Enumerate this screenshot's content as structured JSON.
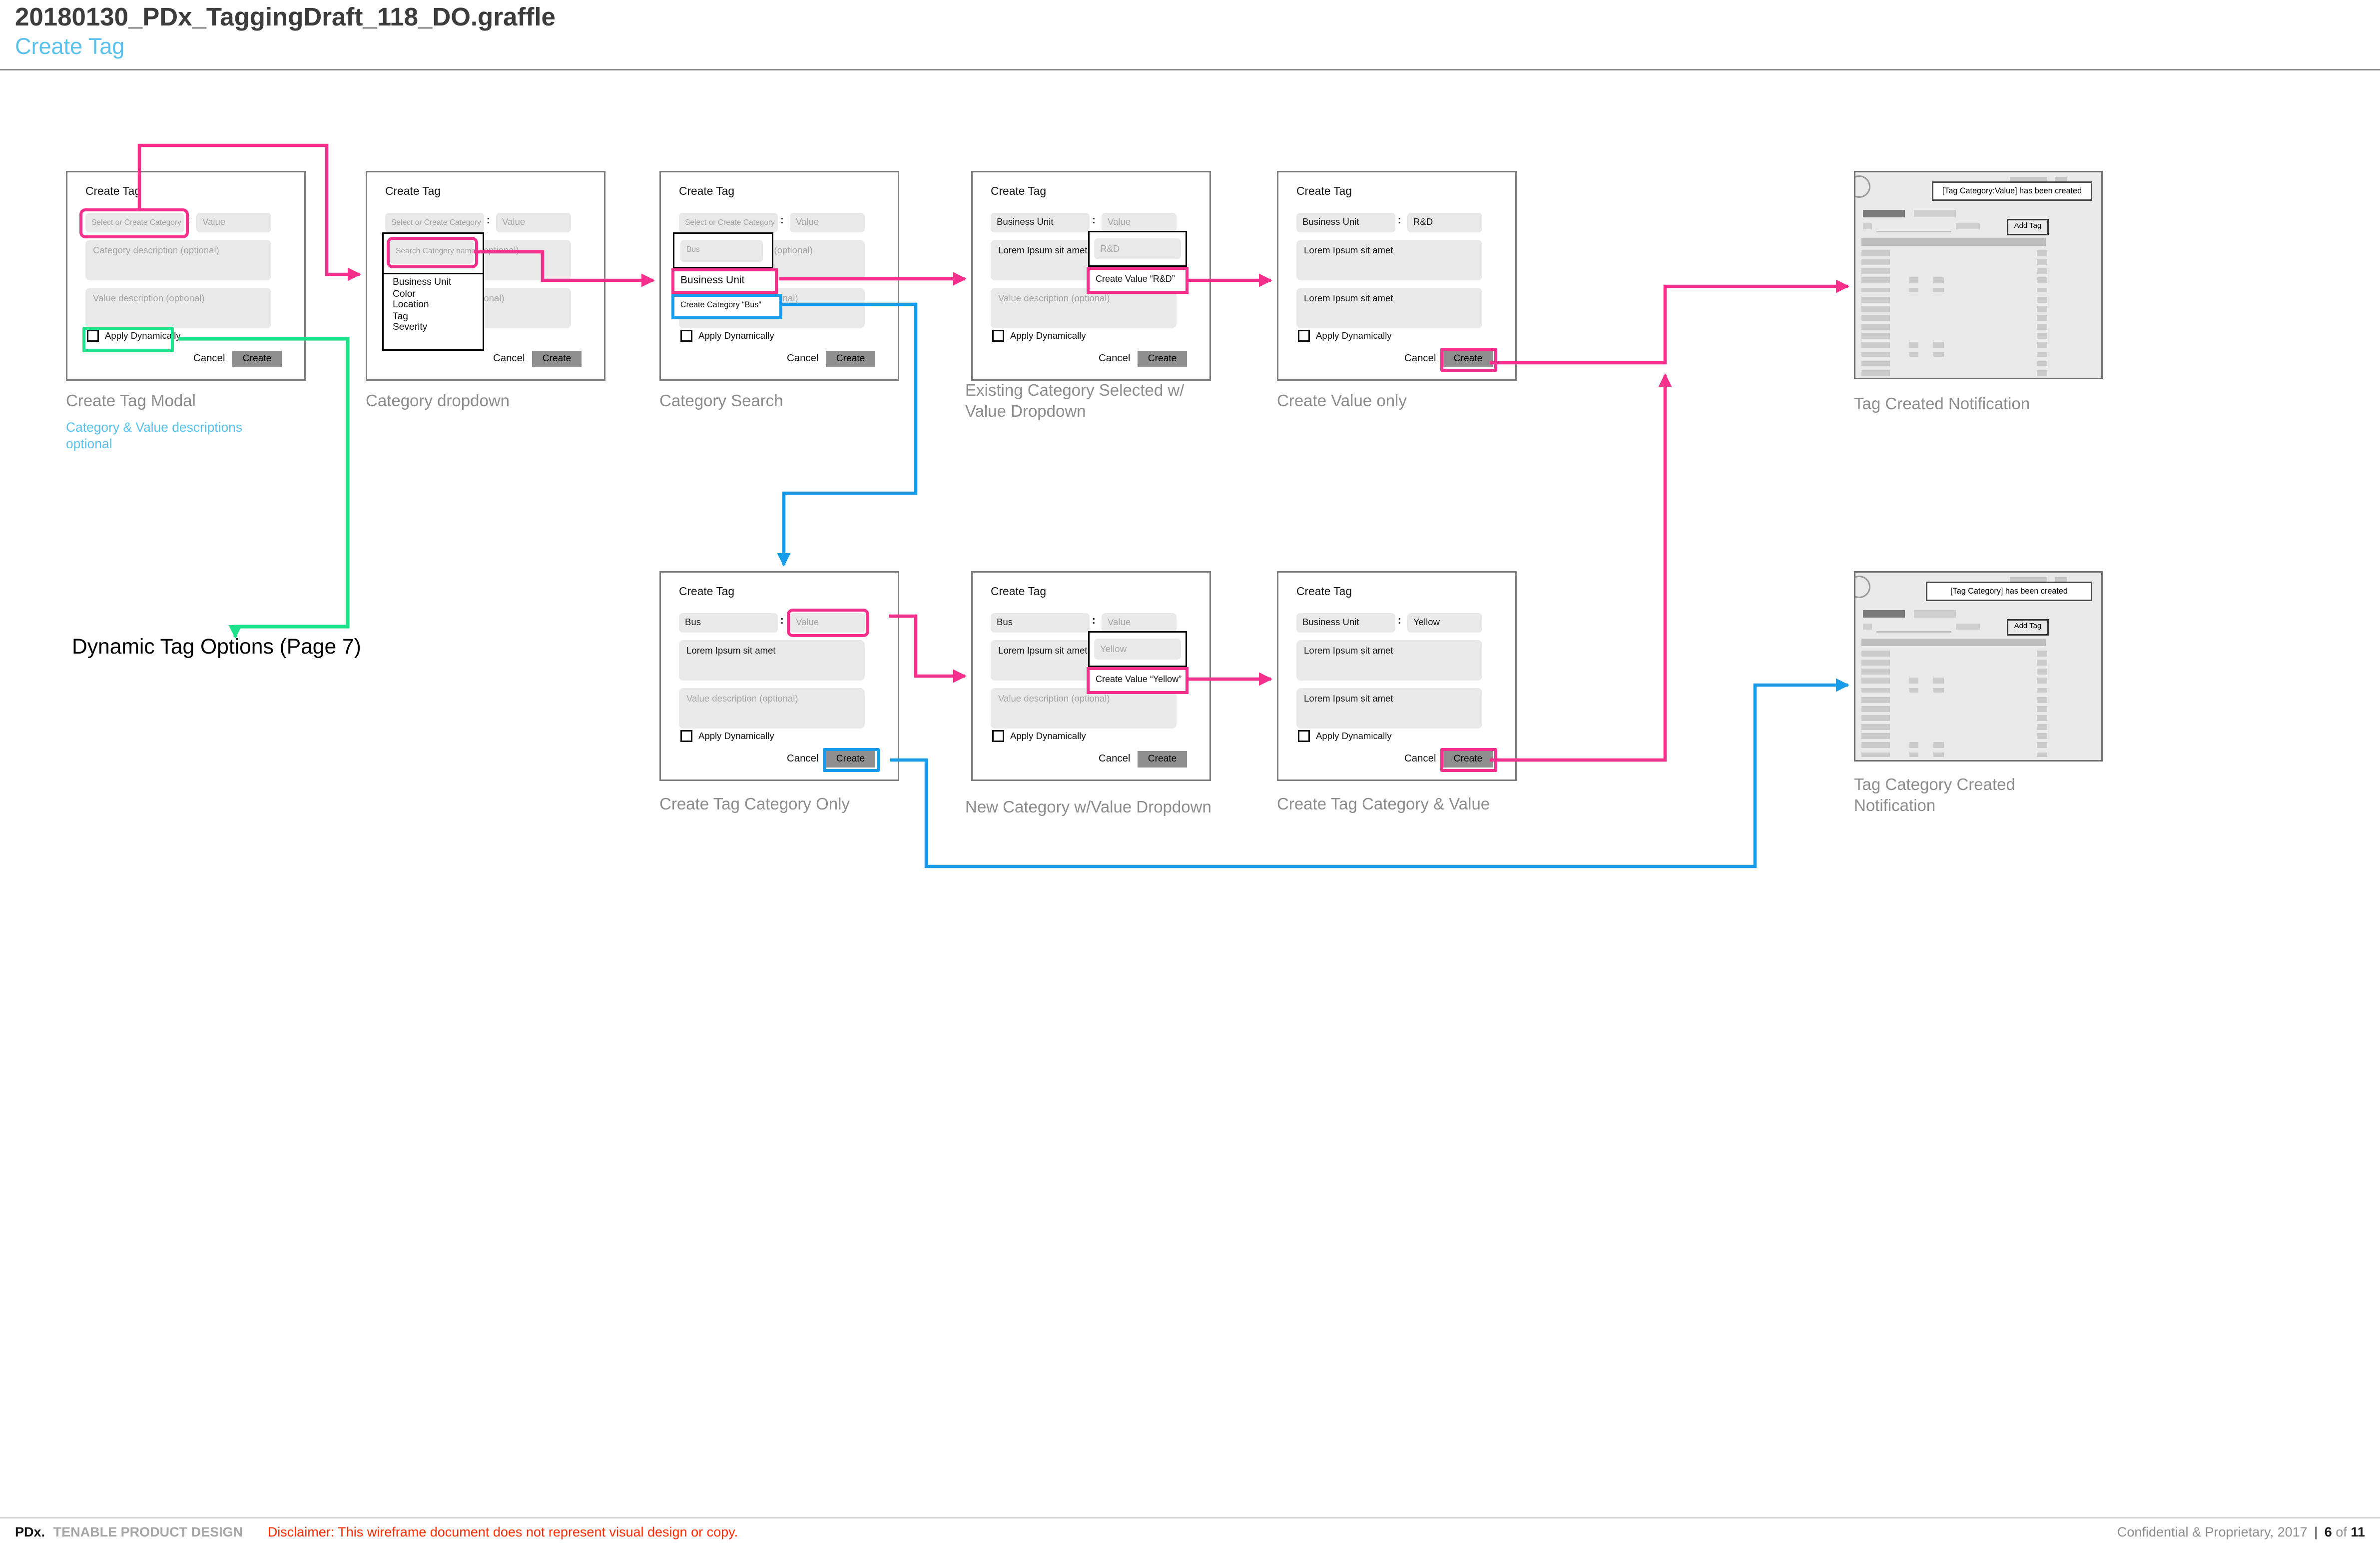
{
  "header": {
    "title": "20180130_PDx_TaggingDraft_118_DO.graffle",
    "subtitle": "Create Tag"
  },
  "colors": {
    "pink": "#F5308C",
    "blue": "#189BE8",
    "green": "#1FE38C",
    "accent_blue_text": "#5BC2EE",
    "red": "#FF2B00"
  },
  "common": {
    "modal_title": "Create Tag",
    "category_placeholder": "Select or Create Category",
    "value_placeholder": "Value",
    "category_desc_placeholder": "Category description (optional)",
    "value_desc_placeholder": "Value description (optional)",
    "colon": ":",
    "apply_dynamically": "Apply Dynamically",
    "cancel": "Cancel",
    "create": "Create",
    "lorem": "Lorem Ipsum sit amet",
    "add_tag": "Add Tag"
  },
  "modals": {
    "m1": {
      "label": "Create Tag Modal",
      "note_line1": "Category & Value descriptions",
      "note_line2": "optional"
    },
    "m2": {
      "label": "Category dropdown",
      "search_placeholder": "Search Category name",
      "options": [
        "Business Unit",
        "Color",
        "Location",
        "Tag",
        "Severity"
      ]
    },
    "m3": {
      "label": "Category Search",
      "search_value": "Bus",
      "match_option": "Business Unit",
      "create_option": "Create Category “Bus”"
    },
    "m4": {
      "label": "Existing Category Selected w/ Value Dropdown",
      "category_value": "Business Unit",
      "search_value": "R&D",
      "create_option": "Create Value “R&D”"
    },
    "m5": {
      "label": "Create Value only",
      "category_value": "Business Unit",
      "value_value": "R&D"
    },
    "m6": {
      "label": "Create Tag Category Only",
      "category_value": "Bus"
    },
    "m7": {
      "label": "New Category w/Value Dropdown",
      "category_value": "Bus",
      "search_value": "Yellow",
      "create_option": "Create Value “Yellow”"
    },
    "m8": {
      "label": "Create Tag Category & Value",
      "category_value": "Business Unit",
      "value_value": "Yellow"
    }
  },
  "notifications": {
    "n1": {
      "toast": "[Tag Category:Value] has been created",
      "label": "Tag Created Notification"
    },
    "n2": {
      "toast": "[Tag Category] has been created",
      "label": "Tag Category Created Notification"
    }
  },
  "annotations": {
    "dynamic_note": "Dynamic Tag Options (Page 7)"
  },
  "footer": {
    "brand": "PDx.",
    "team": "TENABLE PRODUCT DESIGN",
    "disclaimer": "Disclaimer: This wireframe document does not represent visual design or copy.",
    "confidential": "Confidential & Proprietary, 2017",
    "page_sep": "|",
    "page_current": "6",
    "page_of": "of",
    "page_total": "11"
  }
}
